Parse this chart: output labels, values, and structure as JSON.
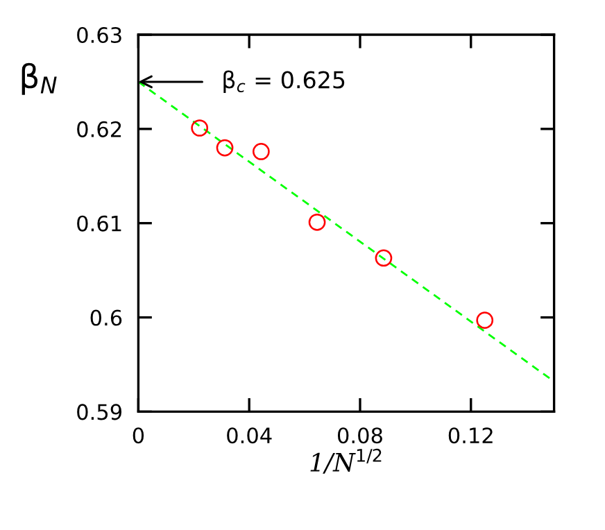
{
  "chart_data": {
    "type": "scatter",
    "xlabel": "1/N$^{1/2}$",
    "ylabel": "β$_{N}$",
    "series": [
      {
        "color": "#ff0000",
        "marker": "circle",
        "x": [
          0.0221,
          0.0312,
          0.0443,
          0.0645,
          0.0885,
          0.125
        ],
        "values": [
          0.6201,
          0.618,
          0.6176,
          0.6101,
          0.6063,
          0.5997
        ]
      },
      {
        "type": "line",
        "color": "#00ff00",
        "line_style": "dashed",
        "x": [
          0,
          0.15
        ],
        "values": [
          0.625,
          0.5932
        ]
      }
    ],
    "annotations": [
      {
        "text": "β$_{c}$ = 0.625",
        "x": 0,
        "y": 0.625
      }
    ],
    "xlim": [
      0,
      0.15
    ],
    "xticks": [
      0,
      0.04,
      0.08,
      0.12
    ],
    "ylim": [
      0.59,
      0.63
    ],
    "yticks": [
      0.59,
      0.6,
      0.61,
      0.62,
      0.63
    ],
    "grid": false,
    "legend": false
  }
}
